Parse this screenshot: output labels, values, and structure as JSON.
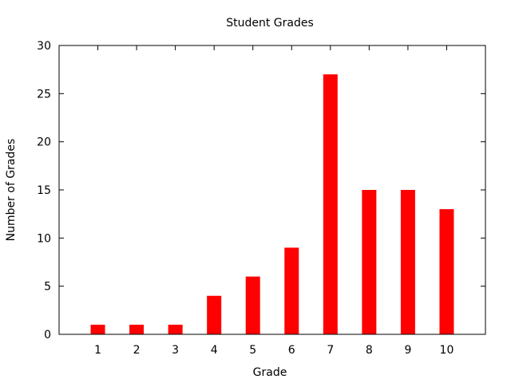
{
  "chart_data": {
    "type": "bar",
    "title": "Student Grades",
    "xlabel": "Grade",
    "ylabel": "Number of Grades",
    "categories": [
      "1",
      "2",
      "3",
      "4",
      "5",
      "6",
      "7",
      "8",
      "9",
      "10"
    ],
    "values": [
      1,
      1,
      1,
      4,
      6,
      9,
      27,
      15,
      15,
      13
    ],
    "xlim": [
      0,
      11
    ],
    "ylim": [
      0,
      30
    ],
    "yticks": [
      0,
      5,
      10,
      15,
      20,
      25,
      30
    ],
    "bar_color": "#ff0000",
    "grid": false,
    "legend": "none"
  }
}
